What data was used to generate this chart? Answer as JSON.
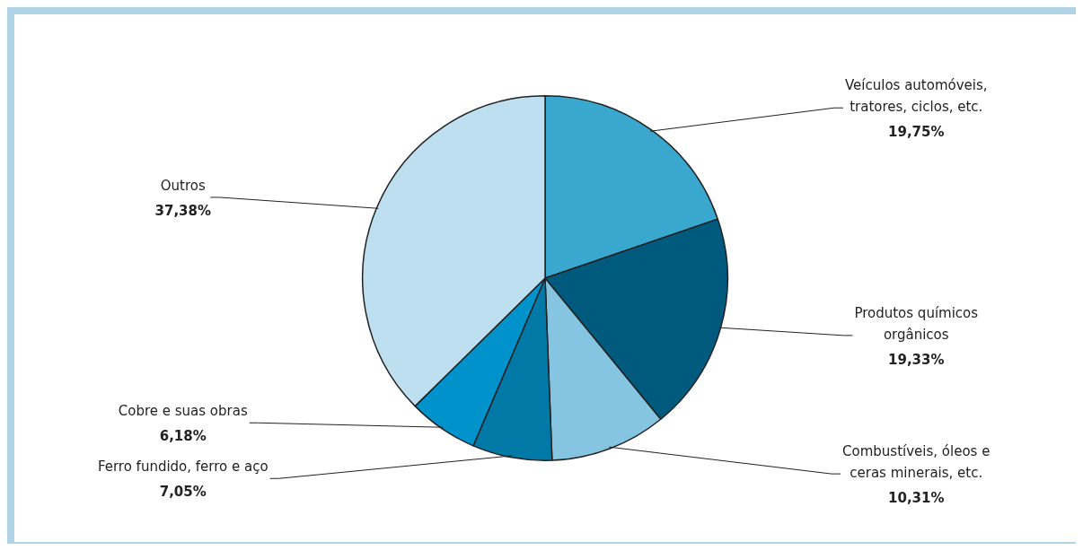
{
  "chart_data": {
    "type": "pie",
    "categories": [
      "Veículos automóveis, tratores, ciclos, etc.",
      "Produtos químicos orgânicos",
      "Combustíveis, óleos e ceras minerais, etc.",
      "Ferro fundido, ferro e aço",
      "Cobre e suas obras",
      "Outros"
    ],
    "values": [
      19.75,
      19.33,
      10.31,
      7.05,
      6.18,
      37.38
    ],
    "colors": [
      "#3aa8ce",
      "#005a7e",
      "#85c5e2",
      "#0079a6",
      "#0093cb",
      "#bddfef"
    ],
    "value_labels": [
      "19,75%",
      "19,33%",
      "10,31%",
      "7,05%",
      "6,18%",
      "37,38%"
    ],
    "legend": false
  }
}
